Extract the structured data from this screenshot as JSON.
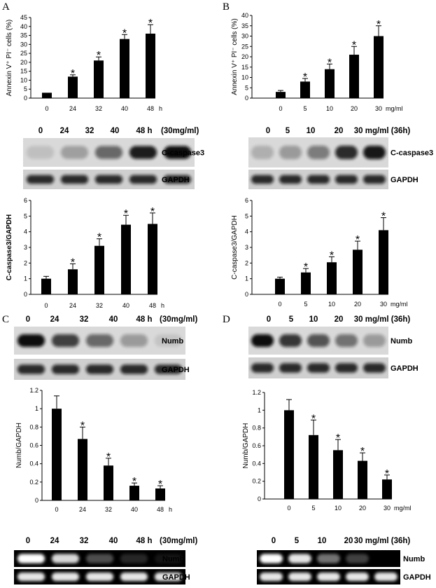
{
  "panel_letters": [
    "A",
    "B",
    "C",
    "D"
  ],
  "blots": {
    "A_casp": {
      "lanes": [
        "0",
        "24",
        "32",
        "40",
        "48 h"
      ],
      "cond": "(30mg/ml)",
      "bands": [
        "C-caspase3",
        "GAPDH"
      ],
      "intensity": [
        [
          0.12,
          0.28,
          0.55,
          0.92,
          1.0
        ],
        [
          0.85,
          0.85,
          0.85,
          0.85,
          0.85
        ]
      ]
    },
    "B_casp": {
      "lanes": [
        "0",
        "5",
        "10",
        "20",
        "30 mg/ml (36h)"
      ],
      "bands": [
        "C-caspase3",
        "GAPDH"
      ],
      "intensity": [
        [
          0.2,
          0.3,
          0.45,
          0.85,
          0.95
        ],
        [
          0.85,
          0.85,
          0.85,
          0.85,
          0.85
        ]
      ]
    },
    "C_numb": {
      "lanes": [
        "0",
        "24",
        "32",
        "40",
        "48 h"
      ],
      "cond": "(30mg/ml)",
      "bands": [
        "Numb",
        "GAPDH"
      ],
      "intensity": [
        [
          1.0,
          0.75,
          0.55,
          0.3,
          0.1
        ],
        [
          0.85,
          0.85,
          0.85,
          0.85,
          0.85
        ]
      ]
    },
    "D_numb": {
      "lanes": [
        "0",
        "5",
        "10",
        "20",
        "30 mg/ml (36h)"
      ],
      "bands": [
        "Numb",
        "GAPDH"
      ],
      "intensity": [
        [
          1.0,
          0.8,
          0.65,
          0.5,
          0.3
        ],
        [
          0.85,
          0.85,
          0.85,
          0.85,
          0.85
        ]
      ]
    },
    "C_gel": {
      "lanes": [
        "0",
        "24",
        "32",
        "40",
        "48 h"
      ],
      "cond": "(30mg/ml)",
      "bands": [
        "Numb",
        "GAPDH"
      ],
      "intensity": [
        [
          1.0,
          0.85,
          0.3,
          0.15,
          0.08
        ],
        [
          0.9,
          0.9,
          0.9,
          0.9,
          0.9
        ]
      ]
    },
    "D_gel": {
      "lanes": [
        "0",
        "5",
        "10",
        "20",
        "30 mg/ml (36h)"
      ],
      "bands": [
        "Numb",
        "GAPDH"
      ],
      "intensity": [
        [
          1.0,
          0.9,
          0.45,
          0.25,
          0.0
        ],
        [
          0.9,
          0.9,
          0.9,
          0.9,
          0.9
        ]
      ]
    }
  },
  "chart_data": [
    {
      "id": "A",
      "type": "bar",
      "categories": [
        "0",
        "24",
        "32",
        "40",
        "48"
      ],
      "unit": "h",
      "values": [
        3,
        12,
        21,
        33,
        36
      ],
      "errors": [
        0,
        1,
        2,
        2.5,
        5
      ],
      "sig": [
        false,
        true,
        true,
        true,
        true
      ],
      "ylabel": "Annexin V⁺ PI⁻ cells (%)",
      "ylim": [
        0,
        45
      ],
      "ticks": [
        0,
        5,
        10,
        15,
        20,
        25,
        30,
        35,
        40,
        45
      ]
    },
    {
      "id": "B",
      "type": "bar",
      "categories": [
        "0",
        "5",
        "10",
        "20",
        "30"
      ],
      "unit": "mg/ml",
      "values": [
        3,
        8,
        14,
        21,
        30
      ],
      "errors": [
        0.7,
        1.5,
        2.5,
        4,
        5
      ],
      "sig": [
        false,
        true,
        true,
        true,
        true
      ],
      "ylabel": "Annexin V⁺ PI⁻ cells (%)",
      "ylim": [
        0,
        40
      ],
      "ticks": [
        0,
        5,
        10,
        15,
        20,
        25,
        30,
        35,
        40
      ]
    },
    {
      "id": "A2",
      "type": "bar",
      "categories": [
        "0",
        "24",
        "32",
        "40",
        "48"
      ],
      "unit": "h",
      "values": [
        1.0,
        1.6,
        3.1,
        4.45,
        4.5
      ],
      "errors": [
        0.15,
        0.35,
        0.45,
        0.6,
        0.7
      ],
      "sig": [
        false,
        true,
        true,
        true,
        true
      ],
      "ylabel": "C-caspase3/GAPDH",
      "ylim": [
        0,
        6
      ],
      "ticks": [
        0,
        1,
        2,
        3,
        4,
        5,
        6
      ]
    },
    {
      "id": "B2",
      "type": "bar",
      "categories": [
        "0",
        "5",
        "10",
        "20",
        "30"
      ],
      "unit": "mg/ml",
      "values": [
        1.0,
        1.4,
        2.05,
        2.85,
        4.1
      ],
      "errors": [
        0.1,
        0.25,
        0.35,
        0.55,
        0.8
      ],
      "sig": [
        false,
        true,
        true,
        true,
        true
      ],
      "ylabel": "C-caspase3/GAPDH",
      "ylim": [
        0,
        6
      ],
      "ticks": [
        0,
        1,
        2,
        3,
        4,
        5,
        6
      ]
    },
    {
      "id": "C",
      "type": "bar",
      "categories": [
        "0",
        "24",
        "32",
        "40",
        "48"
      ],
      "unit": "h",
      "values": [
        1.0,
        0.67,
        0.38,
        0.16,
        0.13
      ],
      "errors": [
        0.14,
        0.13,
        0.08,
        0.03,
        0.03
      ],
      "sig": [
        false,
        true,
        true,
        true,
        true
      ],
      "ylabel": "Numb/GAPDH",
      "ylim": [
        0,
        1.2
      ],
      "ticks": [
        0,
        0.2,
        0.4,
        0.6,
        0.8,
        1,
        1.2
      ]
    },
    {
      "id": "D",
      "type": "bar",
      "categories": [
        "0",
        "5",
        "10",
        "20",
        "30"
      ],
      "unit": "mg/ml",
      "values": [
        1.0,
        0.72,
        0.55,
        0.43,
        0.22
      ],
      "errors": [
        0.12,
        0.17,
        0.12,
        0.09,
        0.05
      ],
      "sig": [
        false,
        true,
        true,
        true,
        true
      ],
      "ylabel": "Numb/GAPDH",
      "ylim": [
        0,
        1.2
      ],
      "ticks": [
        0,
        0.2,
        0.4,
        0.6,
        0.8,
        1,
        1.2
      ]
    }
  ]
}
